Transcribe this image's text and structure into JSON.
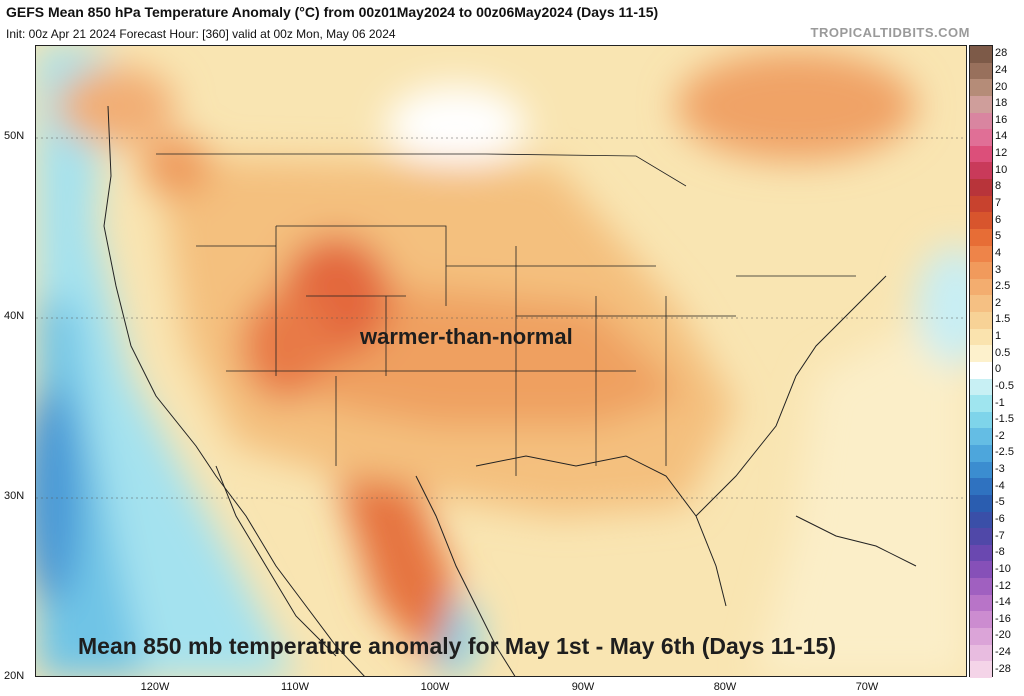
{
  "header": {
    "title": "GEFS Mean 850 hPa Temperature Anomaly (°C) from 00z01May2024 to 00z06May2024 (Days 11-15)",
    "subtitle": "Init: 00z Apr 21 2024   Forecast Hour: [360]   valid at 00z Mon, May 06 2024",
    "credit": "TROPICALTIDBITS.COM"
  },
  "map": {
    "annotation": "warmer-than-normal",
    "caption": "Mean 850 mb temperature anomaly for May 1st - May 6th (Days 11-15)",
    "lat_labels": [
      "50N",
      "40N",
      "30N",
      "20N"
    ],
    "lon_labels": [
      "120W",
      "110W",
      "100W",
      "90W",
      "80W",
      "70W"
    ],
    "colors": {
      "ocean_cool": "#8fd8ec",
      "land_warm": "#f6d594",
      "hot": "#e2633a",
      "neutral": "#ffffff"
    }
  },
  "colorbar": {
    "labels": [
      "28",
      "24",
      "20",
      "18",
      "16",
      "14",
      "12",
      "10",
      "8",
      "7",
      "6",
      "5",
      "4",
      "3",
      "2.5",
      "2",
      "1.5",
      "1",
      "0.5",
      "0",
      "-0.5",
      "-1",
      "-1.5",
      "-2",
      "-2.5",
      "-3",
      "-4",
      "-5",
      "-6",
      "-7",
      "-8",
      "-10",
      "-12",
      "-14",
      "-16",
      "-20",
      "-24",
      "-28"
    ],
    "colors": [
      "#7d5a48",
      "#98705c",
      "#b58c78",
      "#cf9e9b",
      "#d985a0",
      "#e06f96",
      "#dc4f7a",
      "#c93a5a",
      "#b8343a",
      "#c8422e",
      "#d8552d",
      "#e76d36",
      "#ee8449",
      "#f19a5c",
      "#f3ad6f",
      "#f5c083",
      "#f7d296",
      "#fae3ae",
      "#fdf1cc",
      "#ffffff",
      "#c8f0f4",
      "#9fe5ef",
      "#7ed4ea",
      "#64bde4",
      "#4da6dc",
      "#3b8dd0",
      "#2f72c0",
      "#2a5db0",
      "#3a4fa8",
      "#5048a8",
      "#6a48b0",
      "#8650b8",
      "#a060c0",
      "#b874c8",
      "#cc8cd0",
      "#dba4d8",
      "#e8bce0",
      "#f4d4e8"
    ]
  }
}
